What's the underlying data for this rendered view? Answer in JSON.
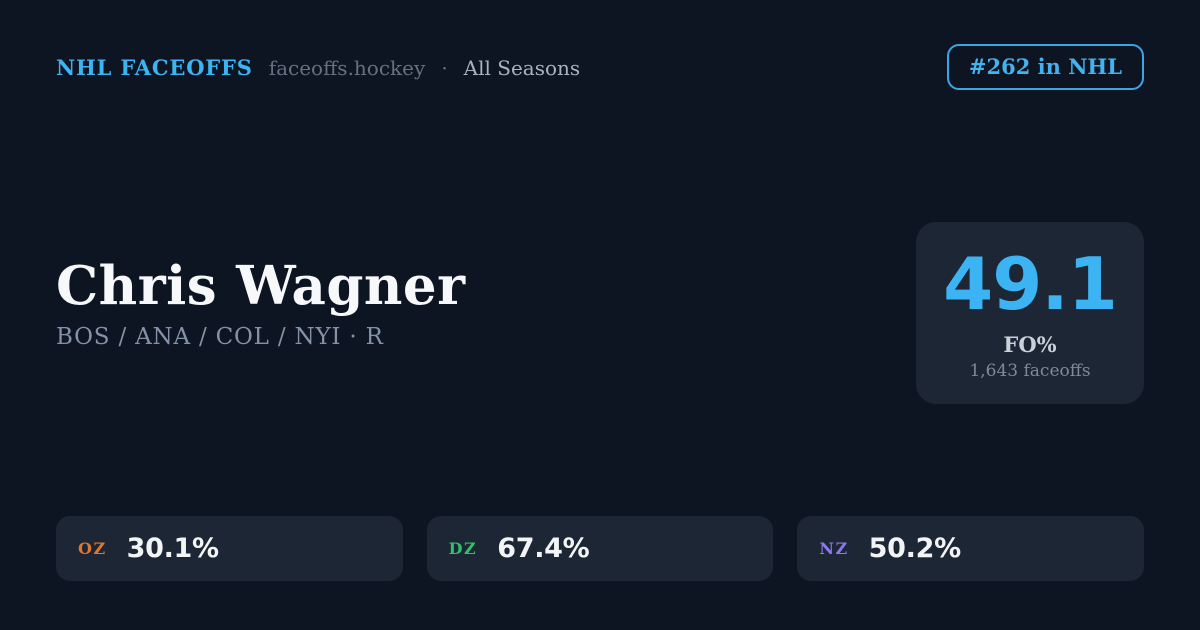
{
  "header": {
    "brand": "NHL FACEOFFS",
    "domain": "faceoffs.hockey",
    "separator": "·",
    "season": "All Seasons",
    "rank_badge": "#262 in NHL"
  },
  "player": {
    "name": "Chris Wagner",
    "teams": "BOS / ANA / COL / NYI · R"
  },
  "summary": {
    "value": "49.1",
    "label": "FO%",
    "sublabel": "1,643 faceoffs"
  },
  "zones": [
    {
      "code": "OZ",
      "value": "30.1%",
      "color": "#e2772c"
    },
    {
      "code": "DZ",
      "value": "67.4%",
      "color": "#2dc368"
    },
    {
      "code": "NZ",
      "value": "50.2%",
      "color": "#8d76ee"
    }
  ],
  "colors": {
    "background": "#0e1522",
    "card": "#1d2634",
    "accent_blue": "#3cb4f4",
    "text_primary": "#f6f8fa",
    "text_secondary": "#8492a8",
    "text_muted": "#66707f"
  }
}
